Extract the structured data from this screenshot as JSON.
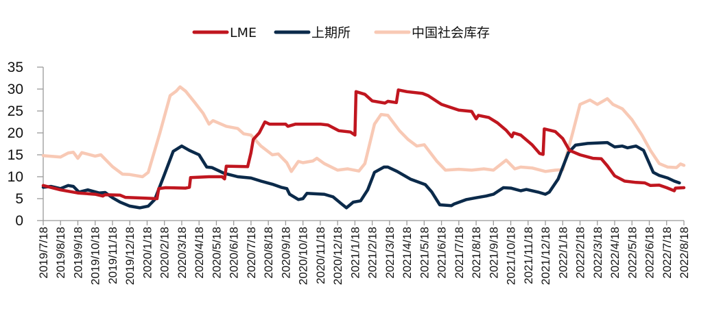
{
  "chart_data": {
    "type": "line",
    "title": "",
    "xlabel": "",
    "ylabel": "",
    "ylim": [
      0,
      35
    ],
    "yticks": [
      0,
      5,
      10,
      15,
      20,
      25,
      30,
      35
    ],
    "grid": false,
    "legend_position": "top",
    "xticks": [
      "2019/7/18",
      "2019/8/18",
      "2019/9/18",
      "2019/10/18",
      "2019/11/18",
      "2019/12/18",
      "2020/1/18",
      "2020/2/18",
      "2020/3/18",
      "2020/4/18",
      "2020/5/18",
      "2020/6/18",
      "2020/7/18",
      "2020/8/18",
      "2020/9/18",
      "2020/10/18",
      "2020/11/18",
      "2020/12/18",
      "2021/1/18",
      "2021/2/18",
      "2021/3/18",
      "2021/4/18",
      "2021/5/18",
      "2021/6/18",
      "2021/7/18",
      "2021/8/18",
      "2021/9/18",
      "2021/10/18",
      "2021/11/18",
      "2021/12/18",
      "2022/1/18",
      "2022/2/18",
      "2022/3/18",
      "2022/4/18",
      "2022/5/18",
      "2022/6/18",
      "2022/7/18",
      "2022/8/18"
    ],
    "series": [
      {
        "name": "LME",
        "color": "#C0161F",
        "points": [
          [
            "2019/7/18",
            8
          ],
          [
            "2019/8/18",
            7
          ],
          [
            "2019/9/18",
            6.3
          ],
          [
            "2019/10/18",
            6
          ],
          [
            "2019/11/1",
            5.6
          ],
          [
            "2019/11/5",
            5.9
          ],
          [
            "2019/12/1",
            5.8
          ],
          [
            "2019/12/10",
            5.3
          ],
          [
            "2020/1/18",
            5.1
          ],
          [
            "2020/2/5",
            5
          ],
          [
            "2020/2/8",
            7.3
          ],
          [
            "2020/2/20",
            7.5
          ],
          [
            "2020/3/25",
            7.4
          ],
          [
            "2020/4/1",
            7.6
          ],
          [
            "2020/4/3",
            9.8
          ],
          [
            "2020/5/5",
            10
          ],
          [
            "2020/5/28",
            10
          ],
          [
            "2020/6/2",
            9.5
          ],
          [
            "2020/6/5",
            12.4
          ],
          [
            "2020/7/12",
            12.3
          ],
          [
            "2020/7/18",
            15.5
          ],
          [
            "2020/7/22",
            18.5
          ],
          [
            "2020/8/2",
            20
          ],
          [
            "2020/8/12",
            22.5
          ],
          [
            "2020/8/20",
            22
          ],
          [
            "2020/9/18",
            22
          ],
          [
            "2020/9/22",
            21.5
          ],
          [
            "2020/10/5",
            22
          ],
          [
            "2020/11/18",
            22
          ],
          [
            "2020/12/1",
            21.8
          ],
          [
            "2020/12/20",
            20.5
          ],
          [
            "2021/1/10",
            20.2
          ],
          [
            "2021/1/18",
            19.5
          ],
          [
            "2021/1/20",
            29.4
          ],
          [
            "2021/2/5",
            28.8
          ],
          [
            "2021/2/18",
            27.3
          ],
          [
            "2021/3/10",
            26.8
          ],
          [
            "2021/3/15",
            27.2
          ],
          [
            "2021/3/30",
            26.9
          ],
          [
            "2021/4/3",
            29.8
          ],
          [
            "2021/4/18",
            29.4
          ],
          [
            "2021/5/15",
            29
          ],
          [
            "2021/5/25",
            28.5
          ],
          [
            "2021/6/18",
            26.5
          ],
          [
            "2021/7/18",
            25.2
          ],
          [
            "2021/8/10",
            24.9
          ],
          [
            "2021/8/18",
            23.2
          ],
          [
            "2021/8/22",
            24
          ],
          [
            "2021/9/10",
            23.5
          ],
          [
            "2021/9/25",
            22.3
          ],
          [
            "2021/10/10",
            20.6
          ],
          [
            "2021/10/20",
            19.1
          ],
          [
            "2021/10/23",
            20
          ],
          [
            "2021/11/5",
            19.5
          ],
          [
            "2021/11/25",
            17.3
          ],
          [
            "2021/12/8",
            15.3
          ],
          [
            "2021/12/14",
            15.1
          ],
          [
            "2021/12/16",
            20.9
          ],
          [
            "2022/1/5",
            20.3
          ],
          [
            "2022/1/18",
            18.7
          ],
          [
            "2022/1/30",
            16
          ],
          [
            "2022/2/18",
            15
          ],
          [
            "2022/3/10",
            14.2
          ],
          [
            "2022/3/25",
            14.1
          ],
          [
            "2022/4/5",
            12.5
          ],
          [
            "2022/4/18",
            10.2
          ],
          [
            "2022/5/5",
            9
          ],
          [
            "2022/5/25",
            8.7
          ],
          [
            "2022/6/10",
            8.6
          ],
          [
            "2022/6/20",
            8
          ],
          [
            "2022/7/5",
            8.1
          ],
          [
            "2022/7/18",
            7.5
          ],
          [
            "2022/8/1",
            6.8
          ],
          [
            "2022/8/3",
            7.4
          ],
          [
            "2022/8/18",
            7.5
          ]
        ]
      },
      {
        "name": "上期所",
        "color": "#0B2A4A",
        "points": [
          [
            "2019/7/18",
            7.6
          ],
          [
            "2019/8/1",
            7.8
          ],
          [
            "2019/8/18",
            7.3
          ],
          [
            "2019/9/1",
            8
          ],
          [
            "2019/9/10",
            7.8
          ],
          [
            "2019/9/20",
            6.5
          ],
          [
            "2019/10/5",
            7
          ],
          [
            "2019/10/25",
            6.3
          ],
          [
            "2019/11/5",
            6.4
          ],
          [
            "2019/11/18",
            5.2
          ],
          [
            "2019/12/1",
            4.2
          ],
          [
            "2019/12/18",
            3.3
          ],
          [
            "2020/1/5",
            2.9
          ],
          [
            "2020/1/20",
            3.3
          ],
          [
            "2020/2/1",
            4.8
          ],
          [
            "2020/2/18",
            10.5
          ],
          [
            "2020/3/3",
            15.8
          ],
          [
            "2020/3/18",
            17
          ],
          [
            "2020/4/1",
            16
          ],
          [
            "2020/4/18",
            15
          ],
          [
            "2020/5/1",
            12.2
          ],
          [
            "2020/5/10",
            12.1
          ],
          [
            "2020/6/1",
            10.8
          ],
          [
            "2020/6/25",
            10
          ],
          [
            "2020/7/18",
            9.7
          ],
          [
            "2020/8/5",
            9
          ],
          [
            "2020/8/25",
            8.3
          ],
          [
            "2020/9/10",
            7.6
          ],
          [
            "2020/9/20",
            7.3
          ],
          [
            "2020/9/25",
            6
          ],
          [
            "2020/10/10",
            4.8
          ],
          [
            "2020/10/18",
            5
          ],
          [
            "2020/10/25",
            6.2
          ],
          [
            "2020/11/25",
            6
          ],
          [
            "2020/12/10",
            5.4
          ],
          [
            "2020/12/25",
            3.8
          ],
          [
            "2021/1/3",
            2.9
          ],
          [
            "2021/1/15",
            4.2
          ],
          [
            "2021/1/28",
            4.5
          ],
          [
            "2021/2/10",
            7
          ],
          [
            "2021/2/22",
            11
          ],
          [
            "2021/3/8",
            12.2
          ],
          [
            "2021/3/15",
            12.2
          ],
          [
            "2021/4/1",
            11.2
          ],
          [
            "2021/4/25",
            9.4
          ],
          [
            "2021/5/20",
            8.2
          ],
          [
            "2021/6/1",
            6.5
          ],
          [
            "2021/6/15",
            3.6
          ],
          [
            "2021/7/5",
            3.4
          ],
          [
            "2021/7/10",
            3.8
          ],
          [
            "2021/8/1",
            4.8
          ],
          [
            "2021/8/18",
            5.2
          ],
          [
            "2021/9/5",
            5.6
          ],
          [
            "2021/9/18",
            6
          ],
          [
            "2021/10/5",
            7.5
          ],
          [
            "2021/10/18",
            7.4
          ],
          [
            "2021/11/5",
            6.8
          ],
          [
            "2021/11/15",
            7.1
          ],
          [
            "2021/12/5",
            6.5
          ],
          [
            "2021/12/18",
            6
          ],
          [
            "2021/12/25",
            6.5
          ],
          [
            "2022/1/10",
            9.5
          ],
          [
            "2022/1/28",
            15.5
          ],
          [
            "2022/2/10",
            17.2
          ],
          [
            "2022/3/1",
            17.6
          ],
          [
            "2022/3/18",
            17.7
          ],
          [
            "2022/4/5",
            17.8
          ],
          [
            "2022/4/18",
            16.8
          ],
          [
            "2022/5/1",
            17
          ],
          [
            "2022/5/10",
            16.6
          ],
          [
            "2022/5/25",
            17
          ],
          [
            "2022/6/8",
            16
          ],
          [
            "2022/6/25",
            11
          ],
          [
            "2022/7/5",
            10.3
          ],
          [
            "2022/7/20",
            9.7
          ],
          [
            "2022/8/1",
            9
          ],
          [
            "2022/8/10",
            8.6
          ]
        ]
      },
      {
        "name": "中国社会库存",
        "color": "#F8C9B5",
        "points": [
          [
            "2019/7/18",
            14.8
          ],
          [
            "2019/8/18",
            14.5
          ],
          [
            "2019/9/1",
            15.4
          ],
          [
            "2019/9/10",
            15.6
          ],
          [
            "2019/9/18",
            14.2
          ],
          [
            "2019/9/25",
            15.5
          ],
          [
            "2019/10/18",
            14.7
          ],
          [
            "2019/10/28",
            15
          ],
          [
            "2019/11/18",
            12.3
          ],
          [
            "2019/12/5",
            10.6
          ],
          [
            "2019/12/18",
            10.5
          ],
          [
            "2020/1/10",
            10
          ],
          [
            "2020/1/20",
            11
          ],
          [
            "2020/2/10",
            20
          ],
          [
            "2020/2/28",
            28.5
          ],
          [
            "2020/3/8",
            29.5
          ],
          [
            "2020/3/15",
            30.5
          ],
          [
            "2020/3/25",
            29.5
          ],
          [
            "2020/4/10",
            27
          ],
          [
            "2020/4/25",
            24.5
          ],
          [
            "2020/5/5",
            22
          ],
          [
            "2020/5/12",
            22.8
          ],
          [
            "2020/6/5",
            21.5
          ],
          [
            "2020/6/25",
            21
          ],
          [
            "2020/7/5",
            19.8
          ],
          [
            "2020/7/18",
            19.5
          ],
          [
            "2020/8/5",
            17
          ],
          [
            "2020/8/25",
            15
          ],
          [
            "2020/9/5",
            15.2
          ],
          [
            "2020/9/20",
            13.2
          ],
          [
            "2020/9/28",
            11.2
          ],
          [
            "2020/10/10",
            13.5
          ],
          [
            "2020/10/18",
            13.2
          ],
          [
            "2020/11/5",
            13.6
          ],
          [
            "2020/11/12",
            14.2
          ],
          [
            "2020/11/25",
            13
          ],
          [
            "2020/12/18",
            11.5
          ],
          [
            "2021/1/5",
            11.8
          ],
          [
            "2021/1/25",
            11.3
          ],
          [
            "2021/2/5",
            13
          ],
          [
            "2021/2/22",
            22
          ],
          [
            "2021/3/3",
            24.2
          ],
          [
            "2021/3/15",
            24
          ],
          [
            "2021/4/5",
            20.5
          ],
          [
            "2021/4/20",
            18.5
          ],
          [
            "2021/5/5",
            17
          ],
          [
            "2021/5/18",
            17.3
          ],
          [
            "2021/6/10",
            13.5
          ],
          [
            "2021/6/25",
            11.5
          ],
          [
            "2021/7/18",
            11.7
          ],
          [
            "2021/8/10",
            11.5
          ],
          [
            "2021/9/1",
            11.8
          ],
          [
            "2021/9/18",
            11.5
          ],
          [
            "2021/10/10",
            13.8
          ],
          [
            "2021/10/25",
            11.8
          ],
          [
            "2021/11/5",
            12.2
          ],
          [
            "2021/11/25",
            12
          ],
          [
            "2021/12/18",
            11.2
          ],
          [
            "2022/1/5",
            11.5
          ],
          [
            "2022/1/18",
            11.6
          ],
          [
            "2022/2/5",
            20
          ],
          [
            "2022/2/18",
            26.5
          ],
          [
            "2022/3/5",
            27.5
          ],
          [
            "2022/3/18",
            26.5
          ],
          [
            "2022/4/5",
            27.8
          ],
          [
            "2022/4/15",
            26.5
          ],
          [
            "2022/5/1",
            25.5
          ],
          [
            "2022/5/18",
            23
          ],
          [
            "2022/6/5",
            19.5
          ],
          [
            "2022/6/20",
            16
          ],
          [
            "2022/7/5",
            13
          ],
          [
            "2022/7/20",
            12.2
          ],
          [
            "2022/8/5",
            12.1
          ],
          [
            "2022/8/12",
            12.9
          ],
          [
            "2022/8/18",
            12.6
          ]
        ]
      }
    ]
  }
}
